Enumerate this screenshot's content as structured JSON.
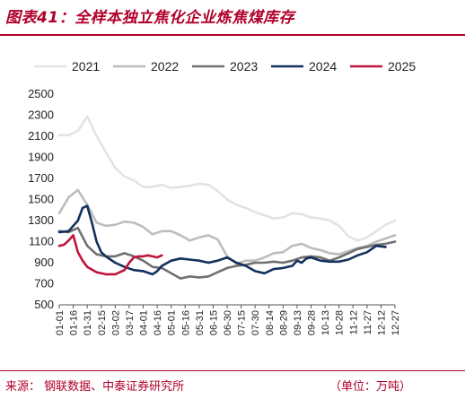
{
  "header": {
    "title": "图表41：全样本独立焦化企业炼焦煤库存"
  },
  "footer": {
    "source": "来源：  钢联数据、中泰证券研究所",
    "unit": "（单位：万吨）"
  },
  "colors": {
    "accent": "#b0002a"
  },
  "chart_data": {
    "type": "line",
    "title": "",
    "xlabel": "",
    "ylabel": "",
    "ylim": [
      500,
      2500
    ],
    "yticks": [
      500,
      700,
      900,
      1100,
      1300,
      1500,
      1700,
      1900,
      2100,
      2300,
      2500
    ],
    "xticks": [
      "01-01",
      "01-16",
      "01-31",
      "02-15",
      "03-02",
      "03-17",
      "04-01",
      "04-16",
      "05-01",
      "05-16",
      "05-31",
      "06-15",
      "06-30",
      "07-15",
      "07-30",
      "08-14",
      "08-29",
      "09-13",
      "09-28",
      "10-13",
      "10-28",
      "11-12",
      "11-27",
      "12-12",
      "12-27"
    ],
    "legend_position": "top",
    "x_start_day": 1,
    "x_end_day": 361,
    "series": [
      {
        "name": "2021",
        "color": "#e3e3e3",
        "points": [
          [
            1,
            2110
          ],
          [
            11,
            2110
          ],
          [
            21,
            2150
          ],
          [
            31,
            2290
          ],
          [
            41,
            2100
          ],
          [
            51,
            1950
          ],
          [
            61,
            1800
          ],
          [
            71,
            1720
          ],
          [
            81,
            1680
          ],
          [
            91,
            1620
          ],
          [
            101,
            1620
          ],
          [
            111,
            1640
          ],
          [
            121,
            1610
          ],
          [
            131,
            1620
          ],
          [
            141,
            1630
          ],
          [
            151,
            1650
          ],
          [
            161,
            1640
          ],
          [
            171,
            1580
          ],
          [
            181,
            1500
          ],
          [
            191,
            1450
          ],
          [
            201,
            1420
          ],
          [
            211,
            1380
          ],
          [
            221,
            1350
          ],
          [
            231,
            1320
          ],
          [
            241,
            1330
          ],
          [
            251,
            1370
          ],
          [
            261,
            1360
          ],
          [
            271,
            1330
          ],
          [
            281,
            1320
          ],
          [
            291,
            1300
          ],
          [
            301,
            1250
          ],
          [
            311,
            1150
          ],
          [
            321,
            1110
          ],
          [
            331,
            1140
          ],
          [
            341,
            1200
          ],
          [
            351,
            1260
          ],
          [
            361,
            1300
          ]
        ]
      },
      {
        "name": "2022",
        "color": "#bdbdbd",
        "points": [
          [
            1,
            1370
          ],
          [
            11,
            1520
          ],
          [
            21,
            1590
          ],
          [
            31,
            1450
          ],
          [
            41,
            1280
          ],
          [
            51,
            1250
          ],
          [
            61,
            1260
          ],
          [
            71,
            1290
          ],
          [
            81,
            1280
          ],
          [
            91,
            1240
          ],
          [
            101,
            1170
          ],
          [
            111,
            1200
          ],
          [
            121,
            1200
          ],
          [
            131,
            1160
          ],
          [
            141,
            1110
          ],
          [
            151,
            1140
          ],
          [
            161,
            1160
          ],
          [
            171,
            1120
          ],
          [
            181,
            960
          ],
          [
            191,
            890
          ],
          [
            201,
            920
          ],
          [
            211,
            920
          ],
          [
            221,
            950
          ],
          [
            231,
            990
          ],
          [
            241,
            1000
          ],
          [
            251,
            1060
          ],
          [
            261,
            1080
          ],
          [
            271,
            1040
          ],
          [
            281,
            1020
          ],
          [
            291,
            990
          ],
          [
            301,
            980
          ],
          [
            311,
            1010
          ],
          [
            321,
            1040
          ],
          [
            331,
            1060
          ],
          [
            341,
            1100
          ],
          [
            351,
            1130
          ],
          [
            361,
            1160
          ]
        ]
      },
      {
        "name": "2023",
        "color": "#707070",
        "points": [
          [
            1,
            1200
          ],
          [
            11,
            1190
          ],
          [
            21,
            1230
          ],
          [
            31,
            1060
          ],
          [
            41,
            980
          ],
          [
            51,
            960
          ],
          [
            61,
            960
          ],
          [
            71,
            990
          ],
          [
            81,
            960
          ],
          [
            91,
            920
          ],
          [
            101,
            860
          ],
          [
            111,
            850
          ],
          [
            121,
            800
          ],
          [
            131,
            750
          ],
          [
            141,
            770
          ],
          [
            151,
            760
          ],
          [
            161,
            770
          ],
          [
            171,
            810
          ],
          [
            181,
            850
          ],
          [
            191,
            870
          ],
          [
            201,
            880
          ],
          [
            211,
            900
          ],
          [
            221,
            900
          ],
          [
            231,
            910
          ],
          [
            241,
            900
          ],
          [
            251,
            920
          ],
          [
            261,
            950
          ],
          [
            271,
            960
          ],
          [
            281,
            950
          ],
          [
            291,
            920
          ],
          [
            301,
            950
          ],
          [
            311,
            990
          ],
          [
            321,
            1030
          ],
          [
            331,
            1050
          ],
          [
            341,
            1070
          ],
          [
            351,
            1080
          ],
          [
            361,
            1100
          ]
        ]
      },
      {
        "name": "2024",
        "color": "#14305e",
        "points": [
          [
            1,
            1190
          ],
          [
            11,
            1200
          ],
          [
            21,
            1300
          ],
          [
            26,
            1420
          ],
          [
            31,
            1440
          ],
          [
            36,
            1280
          ],
          [
            41,
            1100
          ],
          [
            46,
            1000
          ],
          [
            51,
            960
          ],
          [
            61,
            900
          ],
          [
            71,
            860
          ],
          [
            81,
            830
          ],
          [
            91,
            820
          ],
          [
            101,
            790
          ],
          [
            106,
            820
          ],
          [
            111,
            870
          ],
          [
            121,
            920
          ],
          [
            131,
            940
          ],
          [
            141,
            930
          ],
          [
            151,
            920
          ],
          [
            161,
            900
          ],
          [
            171,
            920
          ],
          [
            181,
            950
          ],
          [
            191,
            900
          ],
          [
            201,
            870
          ],
          [
            211,
            820
          ],
          [
            221,
            800
          ],
          [
            231,
            840
          ],
          [
            241,
            850
          ],
          [
            251,
            870
          ],
          [
            256,
            920
          ],
          [
            261,
            900
          ],
          [
            266,
            940
          ],
          [
            271,
            950
          ],
          [
            281,
            920
          ],
          [
            291,
            910
          ],
          [
            301,
            910
          ],
          [
            311,
            930
          ],
          [
            321,
            970
          ],
          [
            331,
            1000
          ],
          [
            341,
            1060
          ],
          [
            351,
            1050
          ]
        ]
      },
      {
        "name": "2025",
        "color": "#c0143c",
        "points": [
          [
            1,
            1060
          ],
          [
            6,
            1070
          ],
          [
            11,
            1110
          ],
          [
            16,
            1160
          ],
          [
            21,
            1000
          ],
          [
            26,
            920
          ],
          [
            31,
            860
          ],
          [
            41,
            810
          ],
          [
            51,
            790
          ],
          [
            61,
            790
          ],
          [
            71,
            830
          ],
          [
            76,
            900
          ],
          [
            81,
            950
          ],
          [
            86,
            960
          ],
          [
            91,
            960
          ],
          [
            96,
            970
          ],
          [
            101,
            960
          ],
          [
            106,
            950
          ],
          [
            111,
            970
          ]
        ]
      }
    ]
  }
}
